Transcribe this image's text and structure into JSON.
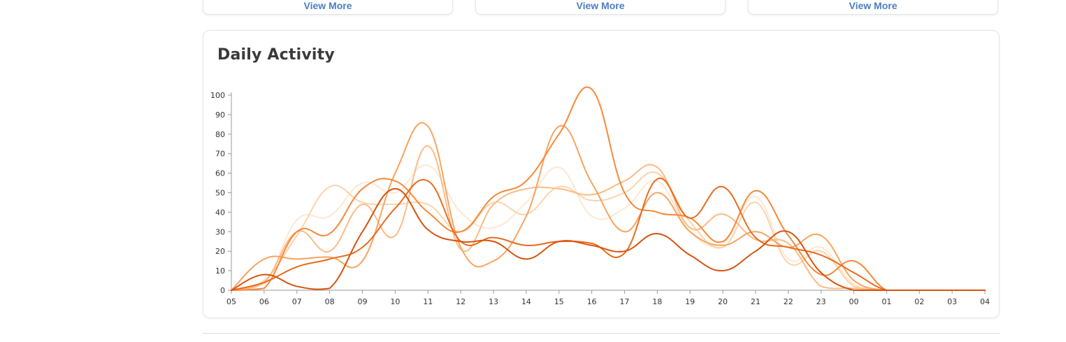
{
  "cards": [
    {
      "link": "View More"
    },
    {
      "link": "View More"
    },
    {
      "link": "View More"
    }
  ],
  "panel": {
    "title": "Daily Activity"
  },
  "chart_data": {
    "type": "line",
    "title": "Daily Activity",
    "xlabel": "",
    "ylabel": "",
    "x": [
      "05",
      "06",
      "07",
      "08",
      "09",
      "10",
      "11",
      "12",
      "13",
      "14",
      "15",
      "16",
      "17",
      "18",
      "19",
      "20",
      "21",
      "22",
      "23",
      "00",
      "01",
      "02",
      "03",
      "04"
    ],
    "y_ticks": [
      0,
      10,
      20,
      30,
      40,
      50,
      60,
      70,
      80,
      90,
      100
    ],
    "ylim": [
      0,
      100
    ],
    "grid": false,
    "legend": "none",
    "series": [
      {
        "color": "#fde8d2",
        "values": [
          0,
          3,
          36,
          38,
          55,
          50,
          64,
          40,
          32,
          45,
          63,
          38,
          42,
          56,
          30,
          24,
          48,
          16,
          22,
          3,
          0,
          0,
          0,
          0
        ]
      },
      {
        "color": "#fdd3aa",
        "values": [
          0,
          5,
          28,
          53,
          45,
          44,
          44,
          30,
          45,
          39,
          53,
          46,
          50,
          60,
          35,
          22,
          45,
          14,
          20,
          2,
          0,
          0,
          0,
          0
        ]
      },
      {
        "color": "#fcbb84",
        "values": [
          0,
          4,
          30,
          20,
          44,
          28,
          74,
          21,
          44,
          52,
          52,
          49,
          56,
          63,
          32,
          39,
          26,
          24,
          2,
          1,
          0,
          0,
          0,
          0
        ]
      },
      {
        "color": "#f9a360",
        "values": [
          0,
          16,
          16,
          17,
          15,
          60,
          84,
          22,
          15,
          38,
          84,
          55,
          30,
          50,
          30,
          23,
          30,
          22,
          28,
          5,
          0,
          0,
          0,
          0
        ]
      },
      {
        "color": "#f6883a",
        "values": [
          0,
          1,
          30,
          29,
          52,
          56,
          40,
          30,
          48,
          56,
          80,
          103,
          50,
          40,
          37,
          25,
          51,
          28,
          8,
          15,
          0,
          0,
          0,
          0
        ]
      },
      {
        "color": "#e96b1e",
        "values": [
          0,
          4,
          12,
          16,
          22,
          42,
          56,
          25,
          27,
          23,
          25,
          24,
          19,
          57,
          37,
          53,
          27,
          22,
          18,
          9,
          0,
          0,
          0,
          0
        ]
      },
      {
        "color": "#d8520c",
        "values": [
          0,
          8,
          2,
          1,
          30,
          52,
          31,
          25,
          25,
          16,
          25,
          23,
          20,
          29,
          18,
          10,
          20,
          30,
          9,
          0,
          0,
          0,
          0,
          0
        ]
      }
    ]
  }
}
